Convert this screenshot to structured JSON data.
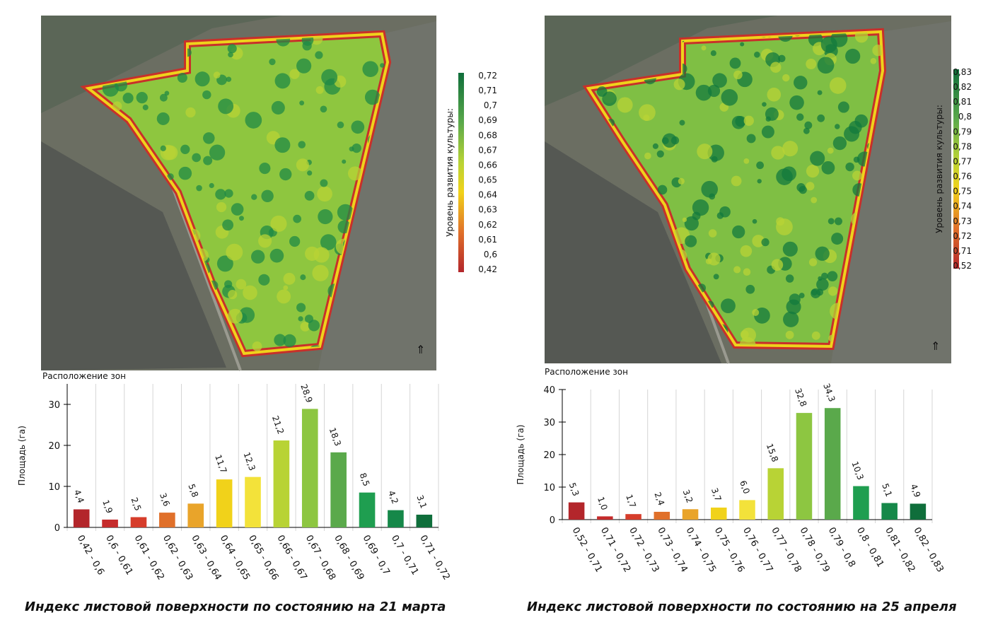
{
  "chart_data": [
    {
      "type": "bar",
      "title": "Расположение зон",
      "y_label": "Площадь (га)",
      "caption": "Индекс листовой поверхности по состоянию на 21 марта",
      "categories": [
        "0,42 - 0,6",
        "0,6 - 0,61",
        "0,61 - 0,62",
        "0,62 - 0,63",
        "0,63 - 0,64",
        "0,64 - 0,65",
        "0,65 - 0,66",
        "0,66 - 0,67",
        "0,67 - 0,68",
        "0,68 - 0,69",
        "0,69 - 0,7",
        "0,7 - 0,71",
        "0,71 - 0,72"
      ],
      "values": [
        4.4,
        1.9,
        2.5,
        3.6,
        5.8,
        11.7,
        12.3,
        21.2,
        28.9,
        18.3,
        8.5,
        4.2,
        3.1
      ],
      "value_labels": [
        "4,4",
        "1,9",
        "2,5",
        "3,6",
        "5,8",
        "11,7",
        "12,3",
        "21,2",
        "28,9",
        "18,3",
        "8,5",
        "4,2",
        "3,1"
      ],
      "colors": [
        "#b3262b",
        "#c52b2b",
        "#d63d2b",
        "#e0702a",
        "#e9a42a",
        "#f1d21a",
        "#f3e23a",
        "#b8d335",
        "#8dc641",
        "#5aa94b",
        "#1f9e50",
        "#168849",
        "#0f6e3b"
      ],
      "ylim": [
        0,
        35
      ],
      "yticks": [
        0,
        10,
        20,
        30
      ],
      "grid": true,
      "legend": {
        "title": "Уровень развития культуры:",
        "labels": [
          "0,72",
          "0,71",
          "0,7",
          "0,69",
          "0,68",
          "0,67",
          "0,66",
          "0,65",
          "0,64",
          "0,63",
          "0,62",
          "0,61",
          "0,6",
          "0,42"
        ]
      }
    },
    {
      "type": "bar",
      "title": "Расположение зон",
      "y_label": "Площадь (га)",
      "caption": "Индекс листовой поверхности по состоянию на 25 апреля",
      "categories": [
        "0,52 - 0,71",
        "0,71 - 0,72",
        "0,72 - 0,73",
        "0,73 - 0,74",
        "0,74 - 0,75",
        "0,75 - 0,76",
        "0,76 - 0,77",
        "0,77 - 0,78",
        "0,78 - 0,79",
        "0,79 - 0,8",
        "0,8 - 0,81",
        "0,81 - 0,82",
        "0,82 - 0,83"
      ],
      "values": [
        5.3,
        1.0,
        1.7,
        2.4,
        3.2,
        3.7,
        6.0,
        15.8,
        32.8,
        34.3,
        10.3,
        5.1,
        4.9
      ],
      "value_labels": [
        "5,3",
        "1,0",
        "1,7",
        "2,4",
        "3,2",
        "3,7",
        "6,0",
        "15,8",
        "32,8",
        "34,3",
        "10,3",
        "5,1",
        "4,9"
      ],
      "colors": [
        "#b3262b",
        "#c52b2b",
        "#d63d2b",
        "#e0702a",
        "#e9a42a",
        "#f1d21a",
        "#f3e23a",
        "#b8d335",
        "#8dc641",
        "#5aa94b",
        "#1f9e50",
        "#168849",
        "#0f6e3b"
      ],
      "ylim": [
        0,
        40
      ],
      "yticks": [
        0,
        10,
        20,
        30,
        40
      ],
      "grid": true,
      "legend": {
        "title": "Уровень развития культуры:",
        "labels": [
          "0,83",
          "0,82",
          "0,81",
          "0,8",
          "0,79",
          "0,78",
          "0,77",
          "0,76",
          "0,75",
          "0,74",
          "0,73",
          "0,72",
          "0,71",
          "0,52"
        ]
      }
    }
  ]
}
